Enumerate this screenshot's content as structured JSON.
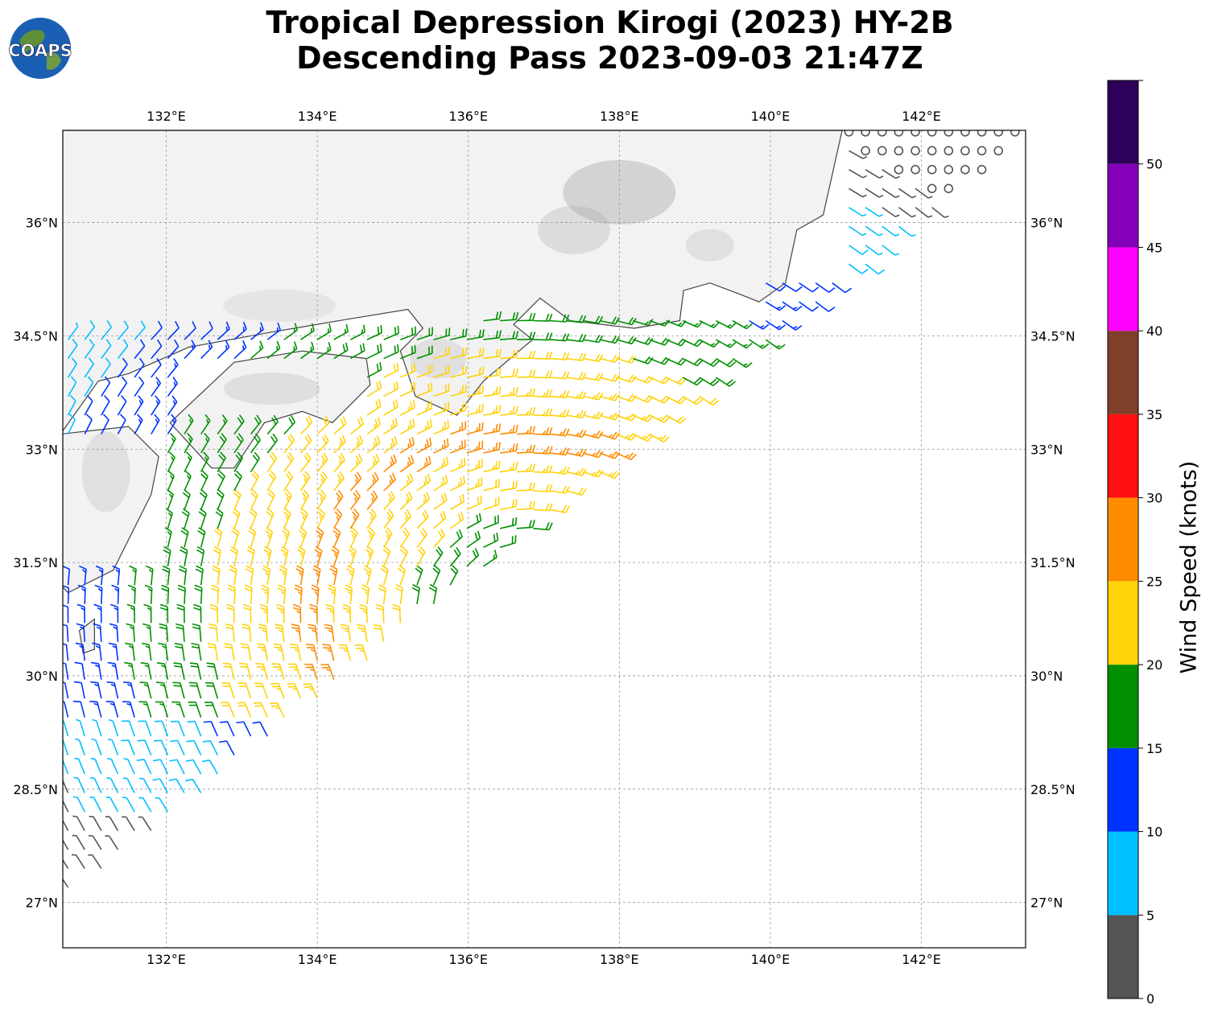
{
  "title": {
    "line1": "Tropical Depression Kirogi (2023) HY-2B",
    "line2": "Descending Pass 2023-09-03 21:47Z"
  },
  "logo": {
    "text": "COAPS",
    "icon": "globe-icon"
  },
  "map": {
    "lon_range": [
      130.63,
      143.38
    ],
    "lat_range": [
      26.4,
      37.22
    ],
    "lon_ticks": [
      {
        "value": 132,
        "label": "132°E"
      },
      {
        "value": 134,
        "label": "134°E"
      },
      {
        "value": 136,
        "label": "136°E"
      },
      {
        "value": 138,
        "label": "138°E"
      },
      {
        "value": 140,
        "label": "140°E"
      },
      {
        "value": 142,
        "label": "142°E"
      }
    ],
    "lat_ticks": [
      {
        "value": 36,
        "label": "36°N"
      },
      {
        "value": 34.5,
        "label": "34.5°N"
      },
      {
        "value": 33,
        "label": "33°N"
      },
      {
        "value": 31.5,
        "label": "31.5°N"
      },
      {
        "value": 30,
        "label": "30°N"
      },
      {
        "value": 28.5,
        "label": "28.5°N"
      },
      {
        "value": 27,
        "label": "27°N"
      }
    ],
    "grid": true,
    "center": {
      "lon": 136.75,
      "lat": 30.75
    },
    "swath_edge": [
      [
        129.9,
        26.4
      ],
      [
        143.6,
        37.3
      ]
    ],
    "land_color": "#f2f2f2",
    "coast_color": "#444444"
  },
  "colorbar": {
    "label": "Wind Speed (knots)",
    "ticks": [
      "0",
      "5",
      "10",
      "15",
      "20",
      "25",
      "30",
      "35",
      "40",
      "45",
      "50"
    ],
    "bins": [
      {
        "from": 0,
        "to": 5,
        "color": "#555555"
      },
      {
        "from": 5,
        "to": 10,
        "color": "#00bfff"
      },
      {
        "from": 10,
        "to": 15,
        "color": "#0033ff"
      },
      {
        "from": 15,
        "to": 20,
        "color": "#009000"
      },
      {
        "from": 20,
        "to": 25,
        "color": "#ffd20a"
      },
      {
        "from": 25,
        "to": 30,
        "color": "#ff8c00"
      },
      {
        "from": 30,
        "to": 35,
        "color": "#ff0f0f"
      },
      {
        "from": 35,
        "to": 40,
        "color": "#803f2a"
      },
      {
        "from": 40,
        "to": 45,
        "color": "#ff00ff"
      },
      {
        "from": 45,
        "to": 50,
        "color": "#8400b8"
      },
      {
        "from": 50,
        "to": 55,
        "color": "#2d0059"
      }
    ]
  }
}
